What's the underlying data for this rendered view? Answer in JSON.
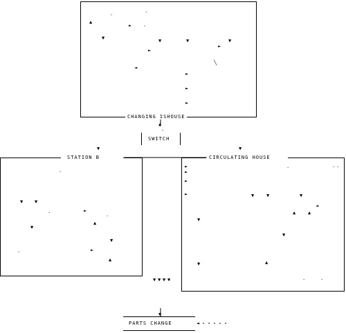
{
  "labels": {
    "top_frame": "CHANGING ISHOUSE",
    "switch_box": "SWITCH",
    "left_frame": "STATION B",
    "right_frame": "CIRCULATING HOUSE",
    "bottom_box": "PARTS CHANGE"
  },
  "marker_icons": [
    "triangle-up-icon",
    "triangle-down-icon",
    "triangle-right-icon",
    "triangle-left-icon",
    "dot-icon",
    "tick-icon"
  ]
}
